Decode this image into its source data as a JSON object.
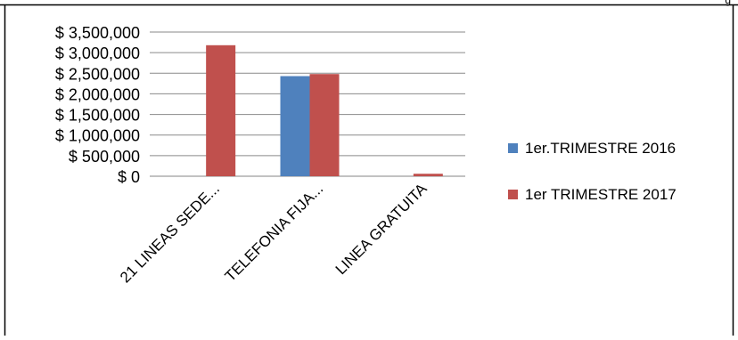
{
  "corner_mark": "g",
  "chart_data": {
    "type": "bar",
    "categories": [
      "21 LINEAS SEDE...",
      "TELEFONIA FIJA...",
      "LINEA GRATUITA"
    ],
    "series": [
      {
        "name": "1er.TRIMESTRE 2016",
        "color": "#4f81bd",
        "values": [
          0,
          2430000,
          0
        ]
      },
      {
        "name": "1er TRIMESTRE 2017",
        "color": "#c0504d",
        "values": [
          3180000,
          2480000,
          60000
        ]
      }
    ],
    "y_ticks": [
      0,
      500000,
      1000000,
      1500000,
      2000000,
      2500000,
      3000000,
      3500000
    ],
    "y_tick_labels": [
      "$ 0",
      "$ 500,000",
      "$ 1,000,000",
      "$ 1,500,000",
      "$ 2,000,000",
      "$ 2,500,000",
      "$ 3,000,000",
      "$ 3,500,000"
    ],
    "ylim": [
      0,
      3500000
    ],
    "grid": true,
    "legend_position": "right",
    "title": "",
    "xlabel": "",
    "ylabel": ""
  }
}
